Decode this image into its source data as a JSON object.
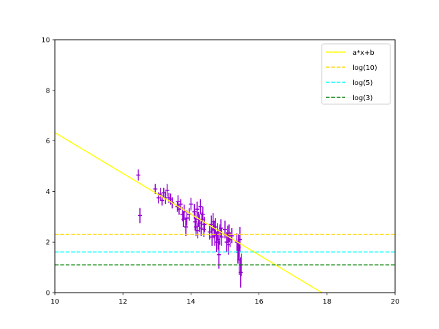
{
  "chart_data": {
    "type": "scatter",
    "title": "",
    "xlabel": "",
    "ylabel": "",
    "xlim": [
      10,
      20
    ],
    "ylim": [
      0,
      10
    ],
    "xticks": [
      "10",
      "12",
      "14",
      "16",
      "18",
      "20"
    ],
    "yticks": [
      "0",
      "2",
      "4",
      "6",
      "8",
      "10"
    ],
    "grid": false,
    "legend_position": "top-right",
    "series": [
      {
        "name": "a*x+b",
        "kind": "line",
        "color": "#ffff00",
        "dash": "solid",
        "x": [
          10,
          17.85
        ],
        "y": [
          6.33,
          0
        ]
      },
      {
        "name": "log(10)",
        "kind": "hline",
        "color": "#ffd700",
        "dash": "dashed",
        "y": 2.303
      },
      {
        "name": "log(5)",
        "kind": "hline",
        "color": "#00ffff",
        "dash": "dashed",
        "y": 1.609
      },
      {
        "name": "log(3)",
        "kind": "hline",
        "color": "#008000",
        "dash": "dashed",
        "y": 1.099
      }
    ],
    "errorbar_points": {
      "color": "#9400d3",
      "xerr": 0.06,
      "points": [
        [
          12.45,
          4.65,
          0.22
        ],
        [
          12.5,
          3.05,
          0.3
        ],
        [
          12.95,
          4.1,
          0.2
        ],
        [
          13.05,
          3.75,
          0.22
        ],
        [
          13.1,
          3.9,
          0.25
        ],
        [
          13.15,
          3.65,
          0.2
        ],
        [
          13.2,
          3.95,
          0.2
        ],
        [
          13.25,
          3.75,
          0.25
        ],
        [
          13.3,
          4.05,
          0.25
        ],
        [
          13.35,
          3.75,
          0.2
        ],
        [
          13.4,
          3.7,
          0.22
        ],
        [
          13.45,
          3.55,
          0.22
        ],
        [
          13.6,
          3.4,
          0.2
        ],
        [
          13.62,
          3.6,
          0.25
        ],
        [
          13.65,
          3.3,
          0.22
        ],
        [
          13.7,
          3.5,
          0.2
        ],
        [
          13.75,
          3.1,
          0.28
        ],
        [
          13.78,
          2.9,
          0.3
        ],
        [
          13.8,
          3.2,
          0.28
        ],
        [
          13.85,
          2.6,
          0.35
        ],
        [
          13.88,
          2.95,
          0.3
        ],
        [
          13.95,
          3.1,
          0.25
        ],
        [
          14.0,
          3.5,
          0.25
        ],
        [
          14.1,
          3.2,
          0.3
        ],
        [
          14.12,
          2.8,
          0.35
        ],
        [
          14.15,
          2.6,
          0.35
        ],
        [
          14.18,
          3.3,
          0.3
        ],
        [
          14.2,
          2.45,
          0.3
        ],
        [
          14.22,
          2.9,
          0.3
        ],
        [
          14.25,
          2.75,
          0.35
        ],
        [
          14.28,
          3.4,
          0.3
        ],
        [
          14.3,
          2.55,
          0.3
        ],
        [
          14.32,
          2.9,
          0.28
        ],
        [
          14.35,
          3.1,
          0.3
        ],
        [
          14.38,
          2.5,
          0.3
        ],
        [
          14.4,
          2.7,
          0.3
        ],
        [
          14.55,
          2.4,
          0.3
        ],
        [
          14.6,
          2.7,
          0.35
        ],
        [
          14.62,
          2.2,
          0.35
        ],
        [
          14.65,
          2.8,
          0.35
        ],
        [
          14.68,
          2.5,
          0.35
        ],
        [
          14.7,
          2.25,
          0.4
        ],
        [
          14.72,
          2.6,
          0.35
        ],
        [
          14.75,
          2.0,
          0.4
        ],
        [
          14.78,
          2.4,
          0.35
        ],
        [
          14.8,
          2.1,
          0.4
        ],
        [
          14.82,
          1.5,
          0.55
        ],
        [
          14.85,
          2.3,
          0.4
        ],
        [
          14.88,
          2.55,
          0.35
        ],
        [
          14.9,
          2.2,
          0.35
        ],
        [
          15.0,
          2.5,
          0.35
        ],
        [
          15.05,
          2.0,
          0.4
        ],
        [
          15.08,
          2.3,
          0.35
        ],
        [
          15.1,
          1.9,
          0.4
        ],
        [
          15.12,
          2.35,
          0.35
        ],
        [
          15.15,
          2.1,
          0.3
        ],
        [
          15.2,
          2.25,
          0.3
        ],
        [
          15.35,
          2.0,
          0.35
        ],
        [
          15.38,
          1.6,
          0.45
        ],
        [
          15.4,
          1.8,
          0.5
        ],
        [
          15.42,
          1.3,
          0.6
        ],
        [
          15.44,
          2.1,
          0.5
        ],
        [
          15.46,
          0.8,
          0.6
        ],
        [
          15.48,
          1.1,
          0.45
        ]
      ]
    }
  }
}
